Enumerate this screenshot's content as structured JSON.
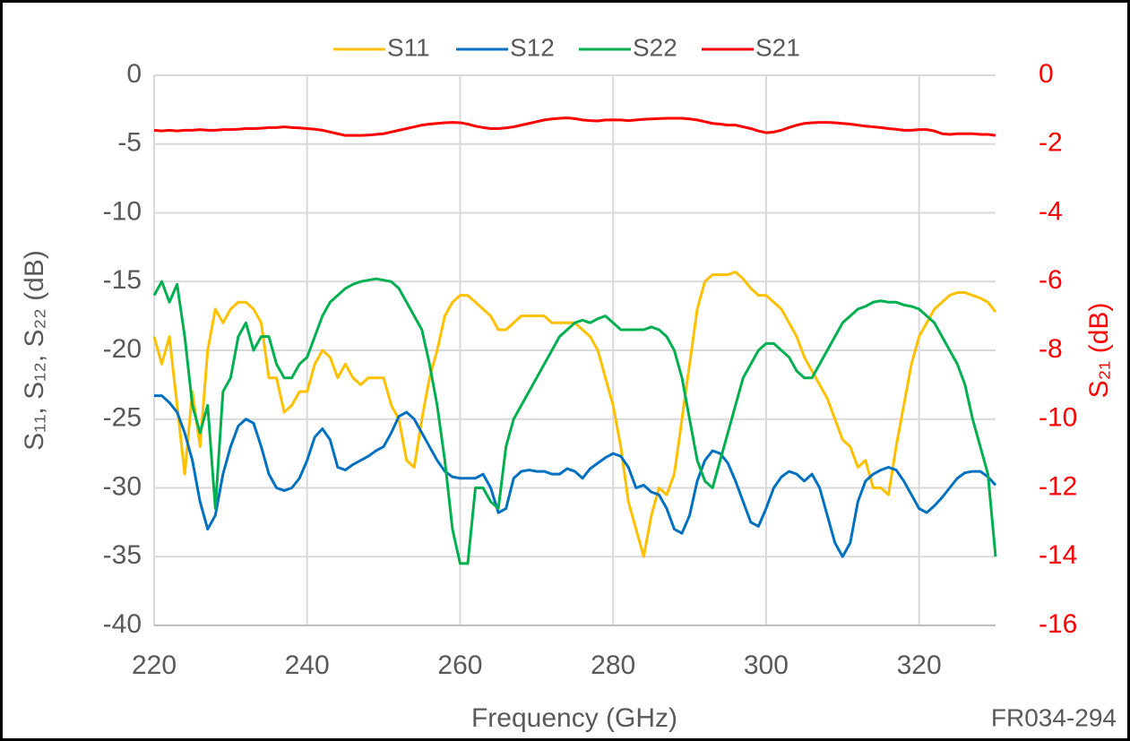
{
  "chart_data": {
    "type": "line",
    "xlabel": "Frequency (GHz)",
    "ylabel": "S₁₁, S₁₂, S₂₂ (dB)",
    "y2label": "S₂₁ (dB)",
    "annotation": "FR034-294",
    "xlim": [
      220,
      330
    ],
    "xticks": [
      220,
      240,
      260,
      280,
      300,
      320
    ],
    "ylim": [
      -40,
      0
    ],
    "yticks": [
      0,
      -5,
      -10,
      -15,
      -20,
      -25,
      -30,
      -35,
      -40
    ],
    "y2lim": [
      -16,
      0
    ],
    "y2ticks": [
      0,
      -2,
      -4,
      -6,
      -8,
      -10,
      -12,
      -14,
      -16
    ],
    "grid": true,
    "legend": "top",
    "x": [
      220,
      221,
      222,
      223,
      224,
      225,
      226,
      227,
      228,
      229,
      230,
      231,
      232,
      233,
      234,
      235,
      236,
      237,
      238,
      239,
      240,
      241,
      242,
      243,
      244,
      245,
      246,
      247,
      248,
      249,
      250,
      251,
      252,
      253,
      254,
      255,
      256,
      257,
      258,
      259,
      260,
      261,
      262,
      263,
      264,
      265,
      266,
      267,
      268,
      269,
      270,
      271,
      272,
      273,
      274,
      275,
      276,
      277,
      278,
      279,
      280,
      281,
      282,
      283,
      284,
      285,
      286,
      287,
      288,
      289,
      290,
      291,
      292,
      293,
      294,
      295,
      296,
      297,
      298,
      299,
      300,
      301,
      302,
      303,
      304,
      305,
      306,
      307,
      308,
      309,
      310,
      311,
      312,
      313,
      314,
      315,
      316,
      317,
      318,
      319,
      320,
      321,
      322,
      323,
      324,
      325,
      326,
      327,
      328,
      329,
      330
    ],
    "series": [
      {
        "name": "S11",
        "color": "#ffc000",
        "values": [
          -19,
          -21,
          -19,
          -24,
          -29,
          -23,
          -27,
          -20,
          -17,
          -18,
          -17,
          -16.5,
          -16.5,
          -17,
          -18,
          -22,
          -22,
          -24.5,
          -24,
          -23,
          -23,
          -21,
          -20,
          -20.5,
          -22,
          -21,
          -22,
          -22.5,
          -22,
          -22,
          -22,
          -24,
          -25,
          -28,
          -28.5,
          -25,
          -22,
          -20,
          -17.5,
          -16.5,
          -16,
          -16,
          -16.5,
          -17,
          -17.5,
          -18.5,
          -18.5,
          -18,
          -17.5,
          -17.5,
          -17.5,
          -17.5,
          -18,
          -18,
          -18,
          -18,
          -18.5,
          -19,
          -20,
          -22,
          -24,
          -27,
          -31,
          -33,
          -35,
          -32,
          -30,
          -30.5,
          -29,
          -25,
          -21,
          -17,
          -15,
          -14.5,
          -14.5,
          -14.5,
          -14.3,
          -14.8,
          -15.5,
          -16,
          -16,
          -16.5,
          -17,
          -18,
          -19,
          -20.5,
          -21.5,
          -22.5,
          -23.5,
          -25,
          -26.5,
          -27,
          -28.5,
          -28,
          -30,
          -30,
          -30.5,
          -27,
          -24,
          -21,
          -19,
          -18,
          -17,
          -16.5,
          -16,
          -15.8,
          -15.8,
          -16,
          -16.2,
          -16.5,
          -17.2
        ]
      },
      {
        "name": "S12",
        "color": "#0070c0",
        "values": [
          -23.3,
          -23.3,
          -23.8,
          -24.5,
          -26,
          -28,
          -31,
          -33,
          -32,
          -29,
          -27,
          -25.5,
          -25,
          -25.3,
          -27,
          -29,
          -30,
          -30.2,
          -30,
          -29.3,
          -28,
          -26.3,
          -25.7,
          -26.5,
          -28.5,
          -28.7,
          -28.3,
          -28,
          -27.7,
          -27.3,
          -27,
          -26,
          -24.8,
          -24.5,
          -25,
          -26,
          -27,
          -28,
          -28.8,
          -29.2,
          -29.3,
          -29.3,
          -29.3,
          -29,
          -30,
          -31.8,
          -31.5,
          -29.3,
          -28.8,
          -28.7,
          -28.8,
          -28.8,
          -29,
          -29,
          -28.6,
          -28.8,
          -29.3,
          -28.6,
          -28.2,
          -27.8,
          -27.5,
          -27.7,
          -28.5,
          -30,
          -29.8,
          -30.3,
          -30.5,
          -31.5,
          -33,
          -33.3,
          -32,
          -29.5,
          -28,
          -27.3,
          -27.5,
          -28.2,
          -29.5,
          -31,
          -32.5,
          -32.8,
          -31.5,
          -30,
          -29.2,
          -28.8,
          -29,
          -29.5,
          -29,
          -30,
          -32,
          -34,
          -35,
          -34,
          -31,
          -29.5,
          -29,
          -28.7,
          -28.5,
          -28.7,
          -29.5,
          -30.5,
          -31.5,
          -31.8,
          -31.3,
          -30.7,
          -30,
          -29.3,
          -28.9,
          -28.8,
          -28.8,
          -29.2,
          -29.8
        ]
      },
      {
        "name": "S22",
        "color": "#00b050",
        "values": [
          -16,
          -15,
          -16.5,
          -15.2,
          -19,
          -24,
          -26,
          -24,
          -31.5,
          -23,
          -22,
          -19,
          -18,
          -20,
          -19,
          -19,
          -21,
          -22,
          -22,
          -21,
          -20.5,
          -19,
          -17.5,
          -16.5,
          -16,
          -15.5,
          -15.2,
          -15,
          -14.9,
          -14.8,
          -14.9,
          -15,
          -15.5,
          -16.5,
          -17.5,
          -18.5,
          -21,
          -24,
          -28,
          -33,
          -35.5,
          -35.5,
          -30,
          -30,
          -31,
          -31.5,
          -27,
          -25,
          -24,
          -23,
          -22,
          -21,
          -20,
          -19,
          -18.5,
          -18,
          -17.8,
          -18,
          -17.7,
          -17.5,
          -18,
          -18.5,
          -18.5,
          -18.5,
          -18.5,
          -18.3,
          -18.5,
          -19,
          -20,
          -22,
          -25,
          -28,
          -29.5,
          -30,
          -28,
          -26,
          -24,
          -22,
          -21,
          -20,
          -19.5,
          -19.5,
          -20,
          -20.5,
          -21.5,
          -22,
          -22,
          -21,
          -20,
          -19,
          -18,
          -17.5,
          -17,
          -16.8,
          -16.5,
          -16.4,
          -16.5,
          -16.5,
          -16.7,
          -16.8,
          -17,
          -17.5,
          -18,
          -19,
          -20,
          -21,
          -22.5,
          -25,
          -27,
          -29,
          -35
        ]
      },
      {
        "name": "S21",
        "color": "#ff0000",
        "axis": "y2",
        "values": [
          -1.6,
          -1.62,
          -1.6,
          -1.62,
          -1.6,
          -1.6,
          -1.58,
          -1.6,
          -1.6,
          -1.58,
          -1.58,
          -1.57,
          -1.55,
          -1.55,
          -1.54,
          -1.52,
          -1.52,
          -1.5,
          -1.52,
          -1.53,
          -1.55,
          -1.57,
          -1.6,
          -1.65,
          -1.7,
          -1.75,
          -1.75,
          -1.75,
          -1.74,
          -1.72,
          -1.7,
          -1.65,
          -1.6,
          -1.55,
          -1.5,
          -1.45,
          -1.42,
          -1.4,
          -1.38,
          -1.37,
          -1.38,
          -1.42,
          -1.48,
          -1.52,
          -1.55,
          -1.55,
          -1.53,
          -1.5,
          -1.45,
          -1.4,
          -1.35,
          -1.3,
          -1.27,
          -1.25,
          -1.24,
          -1.26,
          -1.3,
          -1.32,
          -1.33,
          -1.3,
          -1.3,
          -1.3,
          -1.32,
          -1.3,
          -1.28,
          -1.27,
          -1.26,
          -1.25,
          -1.25,
          -1.25,
          -1.27,
          -1.3,
          -1.35,
          -1.4,
          -1.42,
          -1.45,
          -1.45,
          -1.5,
          -1.55,
          -1.62,
          -1.67,
          -1.65,
          -1.6,
          -1.52,
          -1.45,
          -1.4,
          -1.38,
          -1.37,
          -1.37,
          -1.38,
          -1.4,
          -1.42,
          -1.45,
          -1.48,
          -1.5,
          -1.52,
          -1.55,
          -1.57,
          -1.6,
          -1.6,
          -1.58,
          -1.58,
          -1.62,
          -1.7,
          -1.72,
          -1.7,
          -1.7,
          -1.7,
          -1.72,
          -1.72,
          -1.75
        ]
      }
    ]
  }
}
